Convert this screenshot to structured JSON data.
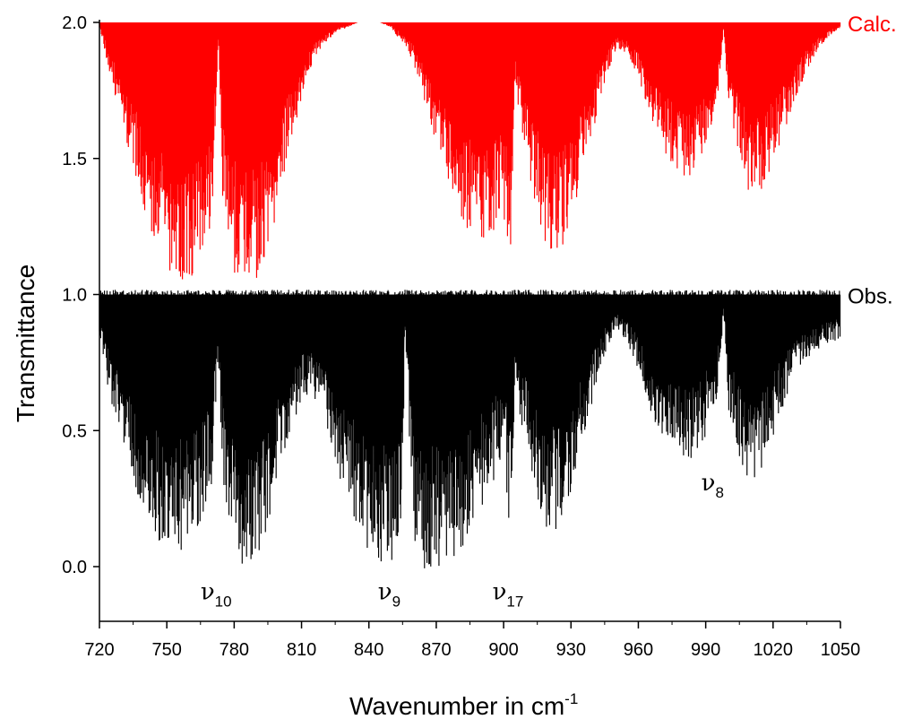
{
  "chart_data": {
    "type": "line",
    "title": "",
    "xlabel_main": "Wavenumber in cm",
    "xlabel_sup": "-1",
    "ylabel": "Transmittance",
    "xlim": [
      720,
      1050
    ],
    "ylim": [
      -0.2,
      2.0
    ],
    "xticks": [
      720,
      750,
      780,
      810,
      840,
      870,
      900,
      930,
      960,
      990,
      1020,
      1050
    ],
    "yticks": [
      "0.0",
      "0.5",
      "1.0",
      "1.5",
      "2.0"
    ],
    "ytick_values": [
      0.0,
      0.5,
      1.0,
      1.5,
      2.0
    ],
    "series": [
      {
        "name": "Calc.",
        "color": "#ff0000",
        "baseline": 2.0,
        "envelope_x": [
          720,
          725,
          730,
          735,
          740,
          745,
          750,
          755,
          760,
          765,
          770,
          773,
          775,
          780,
          785,
          790,
          795,
          800,
          805,
          810,
          815,
          820,
          825,
          830,
          835,
          840,
          845,
          850,
          855,
          860,
          865,
          870,
          875,
          880,
          885,
          890,
          895,
          900,
          903,
          905,
          910,
          915,
          920,
          925,
          930,
          935,
          940,
          945,
          950,
          955,
          960,
          965,
          970,
          975,
          980,
          985,
          990,
          995,
          998,
          1000,
          1005,
          1010,
          1015,
          1020,
          1025,
          1030,
          1035,
          1040,
          1045,
          1050
        ],
        "envelope_min": [
          1.98,
          1.8,
          1.62,
          1.45,
          1.3,
          1.18,
          1.1,
          1.05,
          1.04,
          1.1,
          1.25,
          1.95,
          1.3,
          1.08,
          1.03,
          1.05,
          1.15,
          1.35,
          1.55,
          1.72,
          1.85,
          1.92,
          1.96,
          1.98,
          2.0,
          2.0,
          2.0,
          1.98,
          1.92,
          1.85,
          1.7,
          1.55,
          1.42,
          1.3,
          1.22,
          1.18,
          1.2,
          1.3,
          1.07,
          1.78,
          1.5,
          1.3,
          1.15,
          1.15,
          1.25,
          1.4,
          1.6,
          1.78,
          1.9,
          1.88,
          1.8,
          1.65,
          1.55,
          1.48,
          1.42,
          1.45,
          1.55,
          1.7,
          1.98,
          1.7,
          1.5,
          1.35,
          1.38,
          1.48,
          1.6,
          1.72,
          1.82,
          1.9,
          1.95,
          1.98
        ]
      },
      {
        "name": "Obs.",
        "color": "#000000",
        "baseline": 1.0,
        "envelope_x": [
          720,
          725,
          730,
          735,
          740,
          745,
          750,
          755,
          760,
          765,
          770,
          773,
          775,
          780,
          785,
          790,
          795,
          800,
          805,
          810,
          815,
          820,
          825,
          830,
          835,
          840,
          845,
          850,
          855,
          856,
          860,
          865,
          870,
          875,
          880,
          885,
          890,
          895,
          900,
          903,
          905,
          910,
          915,
          920,
          925,
          930,
          935,
          940,
          945,
          950,
          955,
          960,
          965,
          970,
          975,
          980,
          985,
          990,
          995,
          998,
          1000,
          1005,
          1010,
          1015,
          1020,
          1025,
          1030,
          1035,
          1040,
          1045,
          1050
        ],
        "envelope_min": [
          0.85,
          0.6,
          0.42,
          0.28,
          0.18,
          0.1,
          0.06,
          0.05,
          0.07,
          0.15,
          0.3,
          0.78,
          0.25,
          0.05,
          -0.01,
          0.02,
          0.15,
          0.35,
          0.5,
          0.6,
          0.62,
          0.52,
          0.38,
          0.25,
          0.12,
          0.03,
          -0.02,
          0.02,
          0.1,
          0.88,
          0.05,
          -0.02,
          -0.01,
          0.02,
          0.05,
          0.12,
          0.2,
          0.3,
          0.42,
          0.08,
          0.6,
          0.45,
          0.25,
          0.12,
          0.12,
          0.25,
          0.45,
          0.62,
          0.78,
          0.88,
          0.82,
          0.72,
          0.58,
          0.48,
          0.42,
          0.38,
          0.4,
          0.48,
          0.62,
          0.92,
          0.58,
          0.4,
          0.3,
          0.35,
          0.48,
          0.6,
          0.7,
          0.76,
          0.8,
          0.82,
          0.84
        ]
      }
    ],
    "annotations": [
      {
        "base": "ν",
        "sub": "10",
        "x": 773,
        "y": -0.1
      },
      {
        "base": "ν",
        "sub": "9",
        "x": 852,
        "y": -0.1
      },
      {
        "base": "ν",
        "sub": "17",
        "x": 903,
        "y": -0.1
      },
      {
        "base": "ν",
        "sub": "8",
        "x": 996,
        "y": 0.3
      }
    ]
  }
}
